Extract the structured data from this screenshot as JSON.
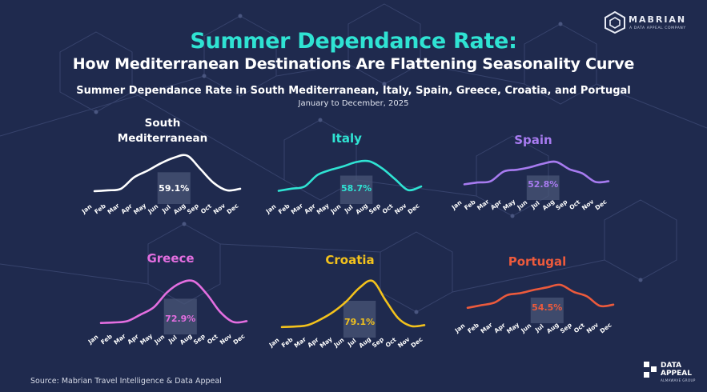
{
  "header": {
    "brand": "MABRIAN",
    "brand_sub": "A DATA APPEAL COMPANY",
    "title_line1": "Summer Dependance Rate:",
    "title_line2": "How Mediterranean Destinations Are Flattening Seasonality Curve",
    "subtitle": "Summer Dependance Rate in South Mediterranean, Italy, Spain, Greece, Croatia, and Portugal",
    "period": "January to December, 2025"
  },
  "footer": {
    "source": "Source: Mabrian Travel Intelligence & Data Appeal",
    "logo_name_line1": "DATA",
    "logo_name_line2": "APPEAL",
    "logo_group": "ALMAWAVE GROUP"
  },
  "colors": {
    "background": "#1f2a4e",
    "title_accent": "#2fe3d3",
    "summer_band": "#4a5577"
  },
  "chart_data": [
    {
      "type": "line",
      "title": "South Mediterranean",
      "color": "#ffffff",
      "summer_rate_label": "59.1%",
      "highlight_range": [
        "Jun",
        "Aug"
      ],
      "x": [
        "Jan",
        "Feb",
        "Mar",
        "Apr",
        "May",
        "Jun",
        "Jul",
        "Aug",
        "Sep",
        "Oct",
        "Nov",
        "Dec"
      ],
      "values": [
        0.08,
        0.1,
        0.14,
        0.42,
        0.58,
        0.76,
        0.9,
        0.95,
        0.62,
        0.28,
        0.1,
        0.14
      ]
    },
    {
      "type": "line",
      "title": "Italy",
      "color": "#2fe3d3",
      "summer_rate_label": "58.7%",
      "highlight_range": [
        "Jun",
        "Aug"
      ],
      "x": [
        "Jan",
        "Feb",
        "Mar",
        "Apr",
        "May",
        "Jun",
        "Jul",
        "Aug",
        "Sep",
        "Oct",
        "Nov",
        "Dec"
      ],
      "values": [
        0.1,
        0.16,
        0.22,
        0.54,
        0.68,
        0.78,
        0.9,
        0.92,
        0.72,
        0.42,
        0.12,
        0.22
      ]
    },
    {
      "type": "line",
      "title": "Spain",
      "color": "#a77bf0",
      "summer_rate_label": "52.8%",
      "highlight_range": [
        "Jun",
        "Aug"
      ],
      "x": [
        "Jan",
        "Feb",
        "Mar",
        "Apr",
        "May",
        "Jun",
        "Jul",
        "Aug",
        "Sep",
        "Oct",
        "Nov",
        "Dec"
      ],
      "values": [
        0.2,
        0.26,
        0.3,
        0.62,
        0.68,
        0.76,
        0.88,
        0.94,
        0.7,
        0.56,
        0.28,
        0.3
      ]
    },
    {
      "type": "line",
      "title": "Greece",
      "color": "#e36ee0",
      "summer_rate_label": "72.9%",
      "highlight_range": [
        "Jun",
        "Aug"
      ],
      "x": [
        "Jan",
        "Feb",
        "Mar",
        "Apr",
        "May",
        "Jun",
        "Jul",
        "Aug",
        "Sep",
        "Oct",
        "Nov",
        "Dec"
      ],
      "values": [
        0.04,
        0.05,
        0.08,
        0.22,
        0.38,
        0.7,
        0.9,
        0.94,
        0.66,
        0.28,
        0.06,
        0.08
      ]
    },
    {
      "type": "line",
      "title": "Croatia",
      "color": "#f3c21c",
      "summer_rate_label": "79.1%",
      "highlight_range": [
        "Jun",
        "Aug"
      ],
      "x": [
        "Jan",
        "Feb",
        "Mar",
        "Apr",
        "May",
        "Jun",
        "Jul",
        "Aug",
        "Sep",
        "Oct",
        "Nov",
        "Dec"
      ],
      "values": [
        0.02,
        0.03,
        0.06,
        0.18,
        0.34,
        0.56,
        0.84,
        0.98,
        0.58,
        0.2,
        0.04,
        0.06
      ]
    },
    {
      "type": "line",
      "title": "Portugal",
      "color": "#ec5a3c",
      "summer_rate_label": "54.5%",
      "highlight_range": [
        "Jun",
        "Aug"
      ],
      "x": [
        "Jan",
        "Feb",
        "Mar",
        "Apr",
        "May",
        "Jun",
        "Jul",
        "Aug",
        "Sep",
        "Oct",
        "Nov",
        "Dec"
      ],
      "values": [
        0.18,
        0.26,
        0.34,
        0.58,
        0.64,
        0.74,
        0.82,
        0.9,
        0.68,
        0.54,
        0.24,
        0.28
      ]
    }
  ]
}
